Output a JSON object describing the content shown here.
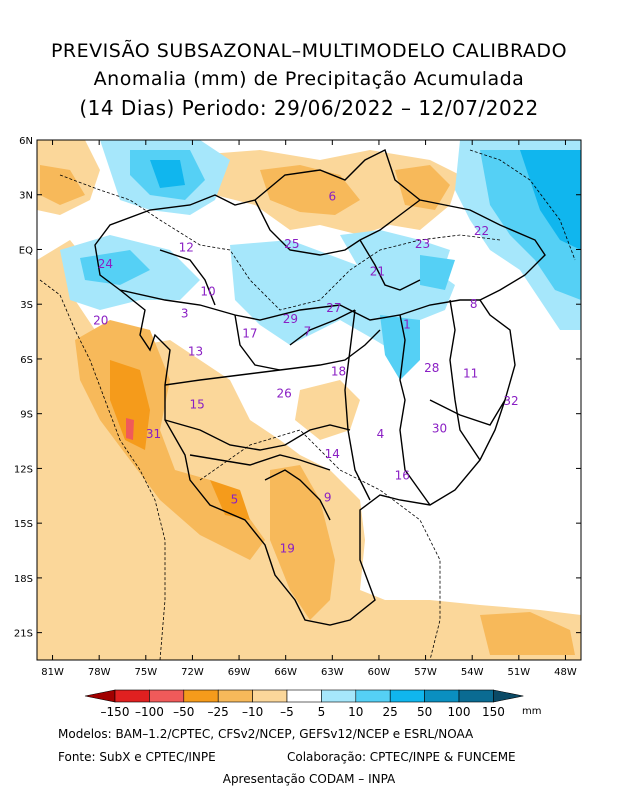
{
  "title": {
    "line1": "PREVISÃO SUBSAZONAL–MULTIMODELO CALIBRADO",
    "line2": "Anomalia (mm) de Precipitação Acumulada",
    "line3": "(14 Dias) Periodo: 29/06/2022 – 12/07/2022"
  },
  "map": {
    "lat_ticks": [
      "6N",
      "3N",
      "EQ",
      "3S",
      "6S",
      "9S",
      "12S",
      "15S",
      "18S",
      "21S"
    ],
    "lon_ticks": [
      "81W",
      "78W",
      "75W",
      "72W",
      "69W",
      "66W",
      "63W",
      "60W",
      "57W",
      "54W",
      "51W",
      "48W"
    ],
    "lat_range": [
      6,
      -22.5
    ],
    "lon_range": [
      -82,
      -47
    ],
    "basins": [
      {
        "id": "1",
        "lon": -58.2,
        "lat": -4.1
      },
      {
        "id": "3",
        "lon": -72.5,
        "lat": -3.5
      },
      {
        "id": "4",
        "lon": -59.9,
        "lat": -10.1
      },
      {
        "id": "5",
        "lon": -69.3,
        "lat": -13.7
      },
      {
        "id": "6",
        "lon": -63.0,
        "lat": 2.9
      },
      {
        "id": "7",
        "lon": -64.6,
        "lat": -4.5
      },
      {
        "id": "8",
        "lon": -53.9,
        "lat": -3.0
      },
      {
        "id": "9",
        "lon": -63.3,
        "lat": -13.6
      },
      {
        "id": "10",
        "lon": -71.0,
        "lat": -2.3
      },
      {
        "id": "11",
        "lon": -54.1,
        "lat": -6.8
      },
      {
        "id": "12",
        "lon": -72.4,
        "lat": 0.1
      },
      {
        "id": "13",
        "lon": -71.8,
        "lat": -5.6
      },
      {
        "id": "14",
        "lon": -63.0,
        "lat": -11.2
      },
      {
        "id": "15",
        "lon": -71.7,
        "lat": -8.5
      },
      {
        "id": "16",
        "lon": -58.5,
        "lat": -12.4
      },
      {
        "id": "17",
        "lon": -68.3,
        "lat": -4.6
      },
      {
        "id": "18",
        "lon": -62.6,
        "lat": -6.7
      },
      {
        "id": "19",
        "lon": -65.9,
        "lat": -16.4
      },
      {
        "id": "20",
        "lon": -77.9,
        "lat": -3.9
      },
      {
        "id": "21",
        "lon": -60.1,
        "lat": -1.2
      },
      {
        "id": "22",
        "lon": -53.4,
        "lat": 1.0
      },
      {
        "id": "23",
        "lon": -57.2,
        "lat": 0.3
      },
      {
        "id": "24",
        "lon": -77.6,
        "lat": -0.8
      },
      {
        "id": "25",
        "lon": -65.6,
        "lat": 0.3
      },
      {
        "id": "26",
        "lon": -66.1,
        "lat": -7.9
      },
      {
        "id": "27",
        "lon": -62.9,
        "lat": -3.2
      },
      {
        "id": "28",
        "lon": -56.6,
        "lat": -6.5
      },
      {
        "id": "29",
        "lon": -65.7,
        "lat": -3.8
      },
      {
        "id": "30",
        "lon": -56.1,
        "lat": -9.8
      },
      {
        "id": "31",
        "lon": -74.5,
        "lat": -10.1
      },
      {
        "id": "32",
        "lon": -51.5,
        "lat": -8.3
      }
    ]
  },
  "legend": {
    "unit": "mm",
    "labels": [
      "–150",
      "–100",
      "–50",
      "–25",
      "–10",
      "–5",
      "5",
      "10",
      "25",
      "50",
      "100",
      "150"
    ],
    "colors": {
      "below_-150": "#a00000",
      "-150_-100": "#e02020",
      "-100_-50": "#f05a5a",
      "-50_-25": "#f59b1b",
      "-25_-10": "#f7b95a",
      "-10_-5": "#fbd79a",
      "-5_5": "#ffffff",
      "5_10": "#a6e7fb",
      "10_25": "#55d0f5",
      "25_50": "#10b6ee",
      "50_100": "#0a8fc0",
      "100_150": "#0a6b92",
      "above_150": "#0b4a66"
    }
  },
  "footer": {
    "line1": "Modelos: BAM–1.2/CPTEC, CFSv2/NCEP, GEFSv12/NCEP e ESRL/NOAA",
    "line2_left": "Fonte: SubX e CPTEC/INPE",
    "line2_right": "Colaboração: CPTEC/INPE & FUNCEME",
    "line3": "Apresentação CODAM – INPA"
  }
}
